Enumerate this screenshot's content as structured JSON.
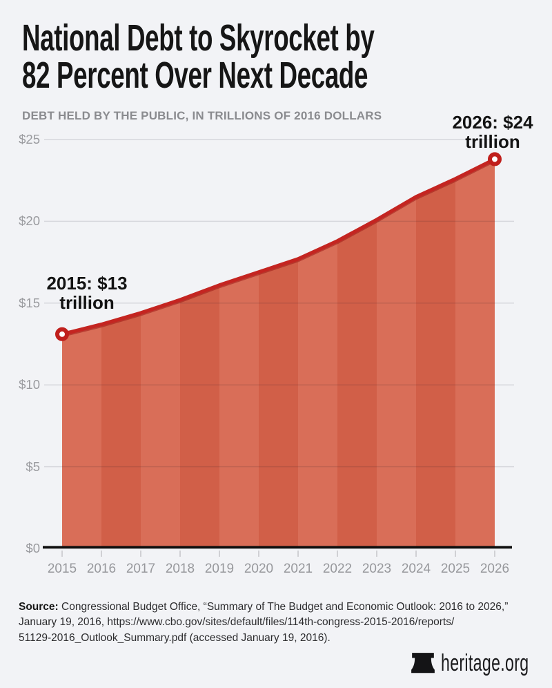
{
  "header": {
    "title_line1": "National Debt to Skyrocket by",
    "title_line2": "82 Percent Over Next Decade",
    "subtitle": "DEBT HELD BY THE PUBLIC, IN TRILLIONS OF 2016 DOLLARS"
  },
  "chart_data": {
    "type": "area",
    "title": "National Debt to Skyrocket by 82 Percent Over Next Decade",
    "ylabel": "Debt held by the public, in trillions of 2016 dollars",
    "x": [
      2015,
      2016,
      2017,
      2018,
      2019,
      2020,
      2021,
      2022,
      2023,
      2024,
      2025,
      2026
    ],
    "series": [
      {
        "name": "Debt held by the public (trillions of 2016 dollars)",
        "values": [
          13.1,
          13.7,
          14.4,
          15.2,
          16.1,
          16.9,
          17.7,
          18.8,
          20.1,
          21.5,
          22.6,
          23.8
        ]
      }
    ],
    "ylim": [
      0,
      25
    ],
    "ytick_values": [
      0,
      5,
      10,
      15,
      20,
      25
    ],
    "ytick_labels": [
      "$0",
      "$5",
      "$10",
      "$15",
      "$20",
      "$25"
    ],
    "grid": "horizontal",
    "legend": "none",
    "annotations": [
      {
        "x": 2015,
        "value": 13.1,
        "line1": "2015: $13",
        "line2": "trillion"
      },
      {
        "x": 2026,
        "value": 23.8,
        "line1": "2026: $24",
        "line2": "trillion"
      }
    ],
    "colors": {
      "band_light": "#d96e58",
      "band_dark": "#d15f48",
      "line": "#c42521",
      "line_shadow": "#9f1a15",
      "point_ring": "#c01f1c",
      "point_center": "#ffffff",
      "axis": "#0e0e0e",
      "tick": "#c4c5c9",
      "grid_rgba": "rgba(20,20,30,0.12)",
      "background": "#f2f3f6"
    }
  },
  "source": {
    "label": "Source:",
    "line1": "Congressional Budget Office, “Summary of The Budget and Economic Outlook: 2016 to 2026,”",
    "line2": "January 19, 2016, https://www.cbo.gov/sites/default/files/114th-congress-2015-2016/reports/",
    "line3": "51129-2016_Outlook_Summary.pdf (accessed January 19, 2016)."
  },
  "footer": {
    "site": "heritage.org"
  }
}
